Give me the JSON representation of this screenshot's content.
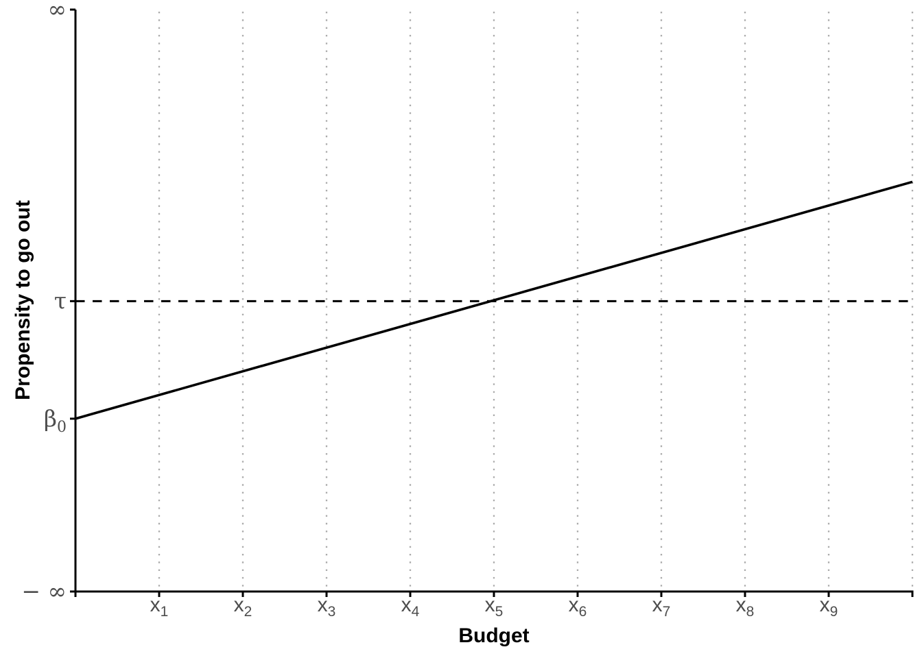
{
  "chart_data": {
    "type": "line",
    "title": "",
    "xlabel": "Budget",
    "ylabel": "Propensity to go out",
    "x_domain": [
      0,
      10
    ],
    "y_domain": [
      0,
      1
    ],
    "grid": "vertical-dotted-only",
    "legend": "none",
    "x_ticks": [
      {
        "pos": 1,
        "base": "x",
        "sub": "1"
      },
      {
        "pos": 2,
        "base": "x",
        "sub": "2"
      },
      {
        "pos": 3,
        "base": "x",
        "sub": "3"
      },
      {
        "pos": 4,
        "base": "x",
        "sub": "4"
      },
      {
        "pos": 5,
        "base": "x",
        "sub": "5"
      },
      {
        "pos": 6,
        "base": "x",
        "sub": "6"
      },
      {
        "pos": 7,
        "base": "x",
        "sub": "7"
      },
      {
        "pos": 8,
        "base": "x",
        "sub": "8"
      },
      {
        "pos": 9,
        "base": "x",
        "sub": "9"
      }
    ],
    "x_edge_tick_positions": [
      0,
      10
    ],
    "y_ticks": [
      {
        "pos": 1.0,
        "base": "∞",
        "sub": ""
      },
      {
        "pos": 0.499,
        "base": "τ",
        "sub": ""
      },
      {
        "pos": 0.297,
        "base": "β",
        "sub": "0"
      },
      {
        "pos": 0.0,
        "base": "− ∞",
        "sub": ""
      }
    ],
    "gridlines": {
      "x_positions": [
        1,
        2,
        3,
        4,
        5,
        6,
        7,
        8,
        9,
        10
      ],
      "style": "dotted",
      "color": "#ABABAB"
    },
    "series": [
      {
        "name": "threshold-tau-line",
        "style": "dashed",
        "color": "#000000",
        "points": [
          [
            0,
            0.499
          ],
          [
            10,
            0.499
          ]
        ]
      },
      {
        "name": "propensity-line",
        "style": "solid",
        "color": "#000000",
        "points": [
          [
            0,
            0.297
          ],
          [
            10,
            0.704
          ]
        ]
      }
    ],
    "axis": {
      "line_color": "#000000",
      "tick_color": "#000000",
      "tick_label_color": "#4D4D4D"
    }
  }
}
